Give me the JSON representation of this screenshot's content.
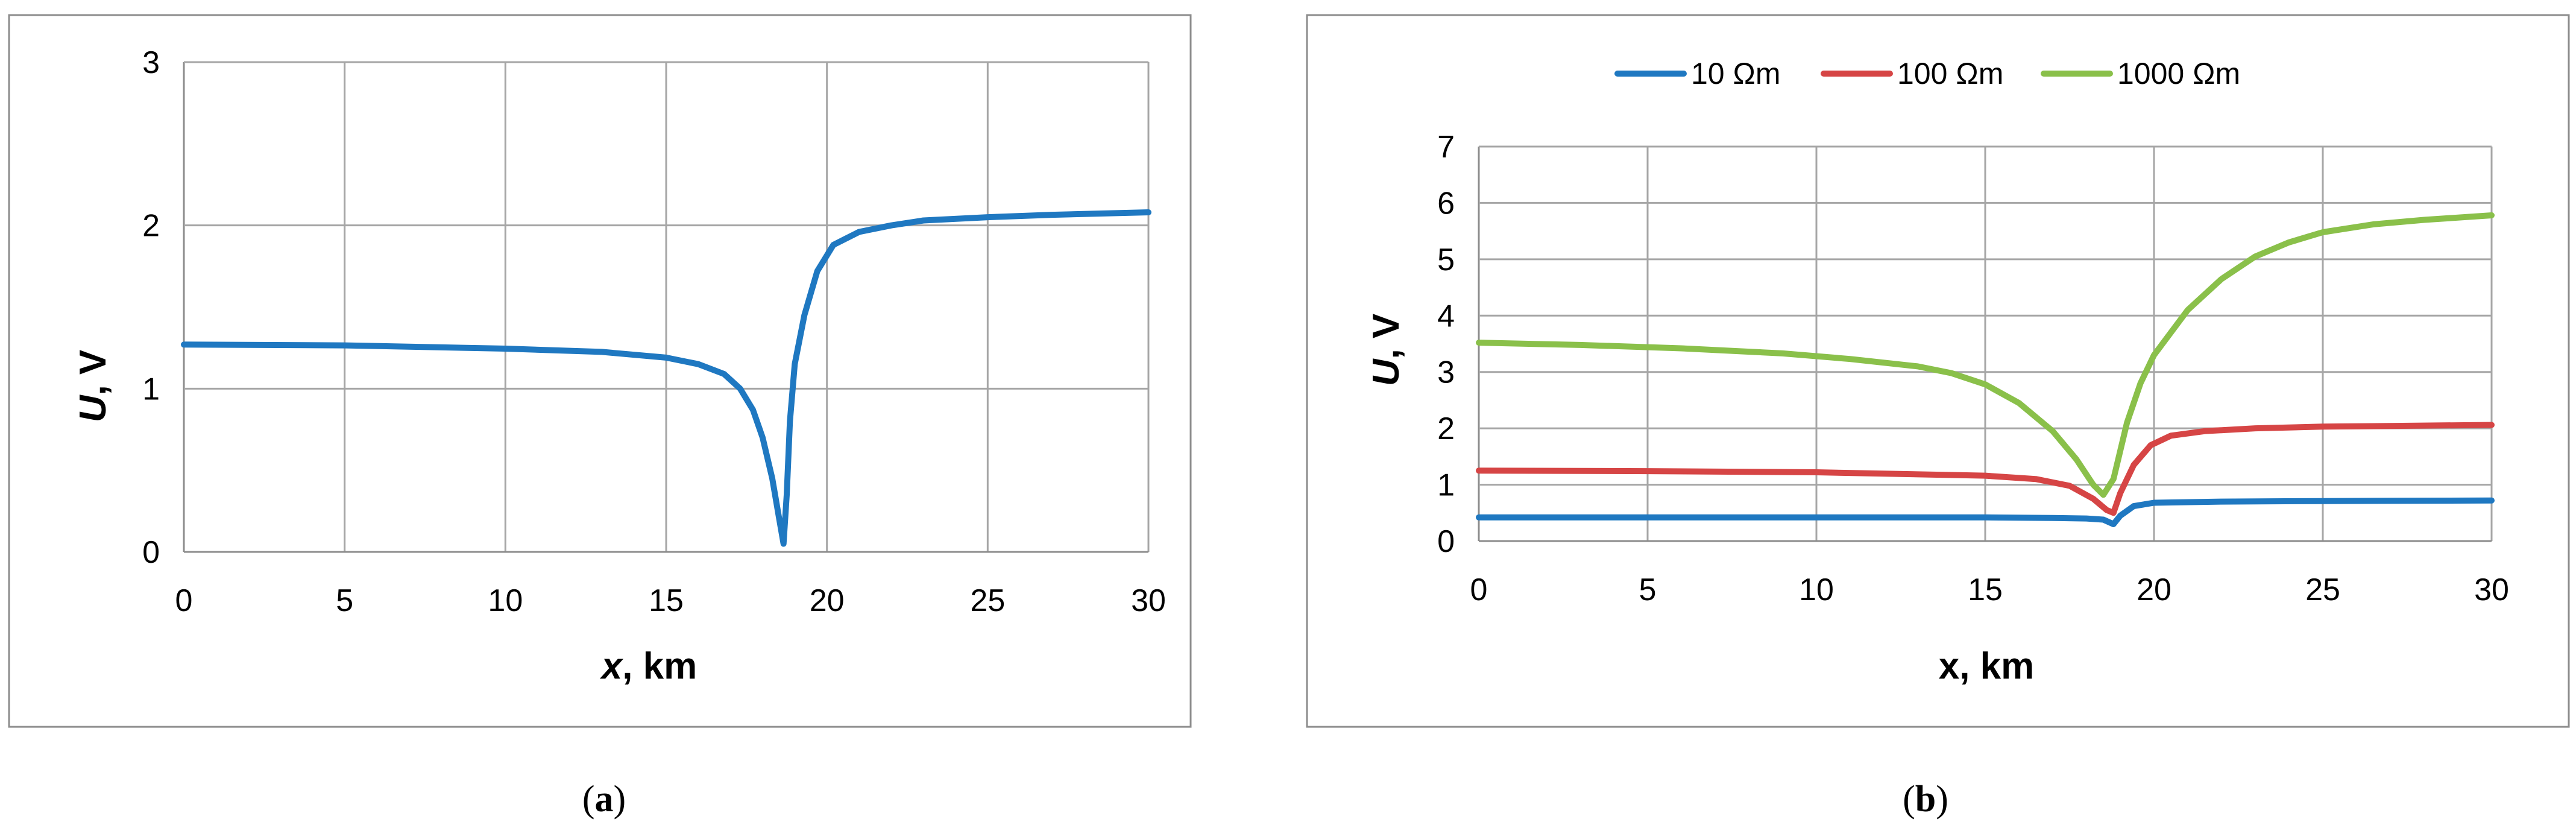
{
  "chart_data": [
    {
      "type": "line",
      "panel_label": "a",
      "xlabel_var": "x",
      "xlabel_unit": ", km",
      "ylabel_var": "U",
      "ylabel_unit": ", V",
      "xlim": [
        0,
        30
      ],
      "ylim": [
        0,
        3
      ],
      "xticks": [
        0,
        5,
        10,
        15,
        20,
        25,
        30
      ],
      "yticks": [
        0,
        1,
        2,
        3
      ],
      "grid": true,
      "legend": "none",
      "series": [
        {
          "color": "#1f78c1",
          "points": [
            [
              0,
              1.27
            ],
            [
              5,
              1.265
            ],
            [
              10,
              1.245
            ],
            [
              13,
              1.225
            ],
            [
              15,
              1.19
            ],
            [
              16,
              1.15
            ],
            [
              16.8,
              1.09
            ],
            [
              17.3,
              1.0
            ],
            [
              17.7,
              0.87
            ],
            [
              18.0,
              0.7
            ],
            [
              18.3,
              0.45
            ],
            [
              18.5,
              0.22
            ],
            [
              18.65,
              0.05
            ],
            [
              18.75,
              0.35
            ],
            [
              18.85,
              0.8
            ],
            [
              19.0,
              1.15
            ],
            [
              19.3,
              1.45
            ],
            [
              19.7,
              1.72
            ],
            [
              20.2,
              1.88
            ],
            [
              21,
              1.96
            ],
            [
              22,
              2.0
            ],
            [
              23,
              2.03
            ],
            [
              25,
              2.05
            ],
            [
              27,
              2.065
            ],
            [
              30,
              2.08
            ]
          ]
        }
      ]
    },
    {
      "type": "line",
      "panel_label": "b",
      "xlabel_var": "x",
      "xlabel_unit": ", km",
      "ylabel_var": "U",
      "ylabel_unit": ", V",
      "xlim": [
        0,
        30
      ],
      "ylim": [
        0,
        7
      ],
      "xticks": [
        0,
        5,
        10,
        15,
        20,
        25,
        30
      ],
      "yticks": [
        0,
        1,
        2,
        3,
        4,
        5,
        6,
        7
      ],
      "grid": true,
      "legend": "top",
      "series": [
        {
          "name": "10 Ωm",
          "color": "#1f78c1",
          "points": [
            [
              0,
              0.42
            ],
            [
              5,
              0.42
            ],
            [
              10,
              0.42
            ],
            [
              15,
              0.42
            ],
            [
              17,
              0.41
            ],
            [
              18,
              0.4
            ],
            [
              18.5,
              0.38
            ],
            [
              18.8,
              0.3
            ],
            [
              19.0,
              0.45
            ],
            [
              19.4,
              0.62
            ],
            [
              20,
              0.68
            ],
            [
              22,
              0.7
            ],
            [
              25,
              0.71
            ],
            [
              30,
              0.72
            ]
          ]
        },
        {
          "name": "100 Ωm",
          "color": "#d64545",
          "points": [
            [
              0,
              1.25
            ],
            [
              5,
              1.24
            ],
            [
              10,
              1.22
            ],
            [
              15,
              1.16
            ],
            [
              16.5,
              1.1
            ],
            [
              17.5,
              0.98
            ],
            [
              18.2,
              0.75
            ],
            [
              18.6,
              0.55
            ],
            [
              18.8,
              0.5
            ],
            [
              19.0,
              0.85
            ],
            [
              19.4,
              1.35
            ],
            [
              19.9,
              1.7
            ],
            [
              20.5,
              1.87
            ],
            [
              21.5,
              1.95
            ],
            [
              23,
              2.0
            ],
            [
              25,
              2.03
            ],
            [
              30,
              2.06
            ]
          ]
        },
        {
          "name": "1000 Ωm",
          "color": "#8ac04a",
          "points": [
            [
              0,
              3.52
            ],
            [
              3,
              3.48
            ],
            [
              6,
              3.42
            ],
            [
              9,
              3.33
            ],
            [
              11,
              3.23
            ],
            [
              13,
              3.1
            ],
            [
              14,
              2.98
            ],
            [
              15,
              2.78
            ],
            [
              16,
              2.45
            ],
            [
              17,
              1.95
            ],
            [
              17.7,
              1.45
            ],
            [
              18.2,
              1.0
            ],
            [
              18.5,
              0.82
            ],
            [
              18.8,
              1.1
            ],
            [
              19.2,
              2.1
            ],
            [
              19.6,
              2.8
            ],
            [
              20,
              3.3
            ],
            [
              21,
              4.1
            ],
            [
              22,
              4.65
            ],
            [
              23,
              5.05
            ],
            [
              24,
              5.3
            ],
            [
              25,
              5.48
            ],
            [
              26.5,
              5.62
            ],
            [
              28,
              5.7
            ],
            [
              30,
              5.78
            ]
          ]
        }
      ]
    }
  ]
}
